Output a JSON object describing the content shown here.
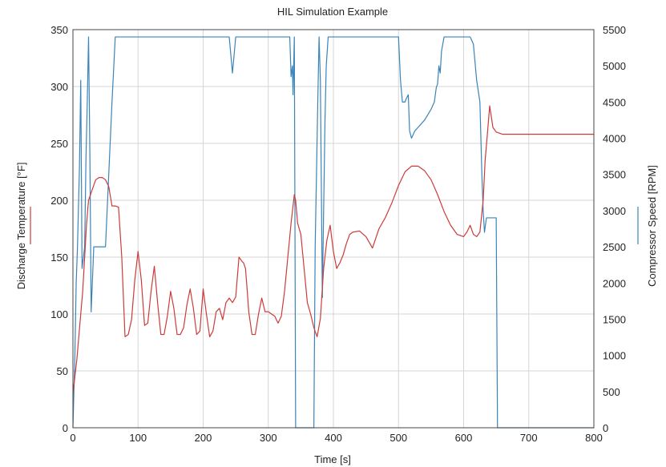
{
  "chart_data": {
    "type": "line",
    "title": "HIL Simulation Example",
    "xlabel": "Time [s]",
    "ylabel_left": "Discharge Temperature [°F]",
    "ylabel_right": "Compressor Speed [RPM]",
    "xlim": [
      0,
      800
    ],
    "ylim_left": [
      0,
      350
    ],
    "ylim_right": [
      0,
      5500
    ],
    "x_ticks": [
      0,
      100,
      200,
      300,
      400,
      500,
      600,
      700,
      800
    ],
    "y_left_ticks": [
      0,
      50,
      100,
      150,
      200,
      250,
      300,
      350
    ],
    "y_right_ticks": [
      0,
      500,
      1000,
      1500,
      2000,
      2500,
      3000,
      3500,
      4000,
      4500,
      5000,
      5500
    ],
    "grid": true,
    "series": [
      {
        "axis": "left",
        "color": "#cc3b3b",
        "x": [
          0,
          3,
          6,
          9,
          12,
          15,
          18,
          21,
          24,
          27,
          30,
          35,
          40,
          45,
          50,
          55,
          60,
          65,
          70,
          75,
          80,
          85,
          90,
          95,
          100,
          105,
          110,
          115,
          120,
          125,
          130,
          135,
          140,
          145,
          150,
          155,
          160,
          165,
          170,
          175,
          180,
          185,
          190,
          195,
          200,
          205,
          210,
          215,
          220,
          225,
          230,
          235,
          240,
          245,
          250,
          255,
          260,
          262,
          265,
          268,
          270,
          275,
          280,
          285,
          290,
          295,
          300,
          305,
          310,
          315,
          320,
          325,
          330,
          335,
          340,
          342,
          345,
          350,
          355,
          360,
          365,
          370,
          375,
          380,
          385,
          390,
          395,
          400,
          405,
          410,
          415,
          420,
          425,
          430,
          440,
          450,
          460,
          470,
          480,
          490,
          500,
          510,
          520,
          530,
          540,
          550,
          560,
          570,
          580,
          590,
          600,
          605,
          610,
          615,
          620,
          625,
          630,
          633,
          636,
          640,
          645,
          650,
          660,
          670,
          680,
          700,
          720,
          740,
          760,
          780,
          800
        ],
        "values": [
          30,
          45,
          60,
          80,
          100,
          120,
          150,
          180,
          200,
          205,
          210,
          218,
          220,
          220,
          218,
          212,
          195,
          195,
          194,
          150,
          80,
          82,
          95,
          130,
          155,
          130,
          90,
          92,
          120,
          142,
          110,
          82,
          82,
          98,
          120,
          105,
          82,
          82,
          88,
          108,
          122,
          105,
          82,
          85,
          122,
          100,
          80,
          85,
          102,
          105,
          95,
          110,
          114,
          110,
          115,
          150,
          146,
          145,
          140,
          118,
          102,
          82,
          82,
          100,
          114,
          102,
          102,
          100,
          98,
          92,
          98,
          120,
          150,
          180,
          205,
          200,
          180,
          170,
          140,
          110,
          100,
          88,
          80,
          96,
          140,
          165,
          178,
          155,
          140,
          145,
          152,
          162,
          170,
          172,
          173,
          168,
          158,
          175,
          185,
          198,
          213,
          225,
          230,
          230,
          226,
          218,
          205,
          190,
          178,
          170,
          168,
          172,
          178,
          170,
          168,
          172,
          200,
          235,
          255,
          283,
          264,
          260,
          258,
          258,
          258,
          258,
          258,
          258,
          258,
          258,
          258
        ]
      },
      {
        "axis": "right",
        "color": "#3b84b8",
        "x": [
          0,
          3,
          5,
          7,
          10,
          12,
          14,
          18,
          20,
          22,
          24,
          26,
          28,
          32,
          35,
          38,
          45,
          50,
          55,
          60,
          65,
          70,
          80,
          100,
          150,
          200,
          240,
          243,
          245,
          247,
          250,
          300,
          330,
          333,
          335,
          337,
          338,
          340,
          342,
          344,
          345,
          355,
          370,
          372,
          374,
          376,
          378,
          380,
          383,
          385,
          387,
          389,
          392,
          394,
          396,
          400,
          420,
          450,
          500,
          503,
          506,
          510,
          512,
          515,
          517,
          520,
          525,
          530,
          540,
          550,
          555,
          558,
          560,
          562,
          564,
          566,
          570,
          580,
          600,
          610,
          615,
          620,
          625,
          628,
          630,
          632,
          635,
          640,
          645,
          648,
          650,
          652,
          700,
          750,
          800
        ],
        "values": [
          0,
          1000,
          2000,
          2500,
          3600,
          4800,
          2200,
          2500,
          3700,
          4500,
          5400,
          3800,
          1600,
          2500,
          2500,
          2500,
          2500,
          2500,
          3500,
          4500,
          5400,
          5400,
          5400,
          5400,
          5400,
          5400,
          5400,
          5100,
          4900,
          5100,
          5400,
          5400,
          5400,
          5400,
          4850,
          5000,
          4600,
          5400,
          0,
          0,
          0,
          0,
          0,
          2500,
          3500,
          4500,
          5400,
          4800,
          1800,
          3000,
          4200,
          5000,
          5400,
          5400,
          5400,
          5400,
          5400,
          5400,
          5400,
          4800,
          4500,
          4500,
          4550,
          4600,
          4100,
          4000,
          4100,
          4150,
          4250,
          4400,
          4500,
          4700,
          4750,
          5000,
          4900,
          5200,
          5400,
          5400,
          5400,
          5400,
          5300,
          4800,
          4500,
          3500,
          3000,
          2700,
          2900,
          2900,
          2900,
          2900,
          2900,
          0,
          0,
          0,
          0
        ]
      }
    ]
  }
}
